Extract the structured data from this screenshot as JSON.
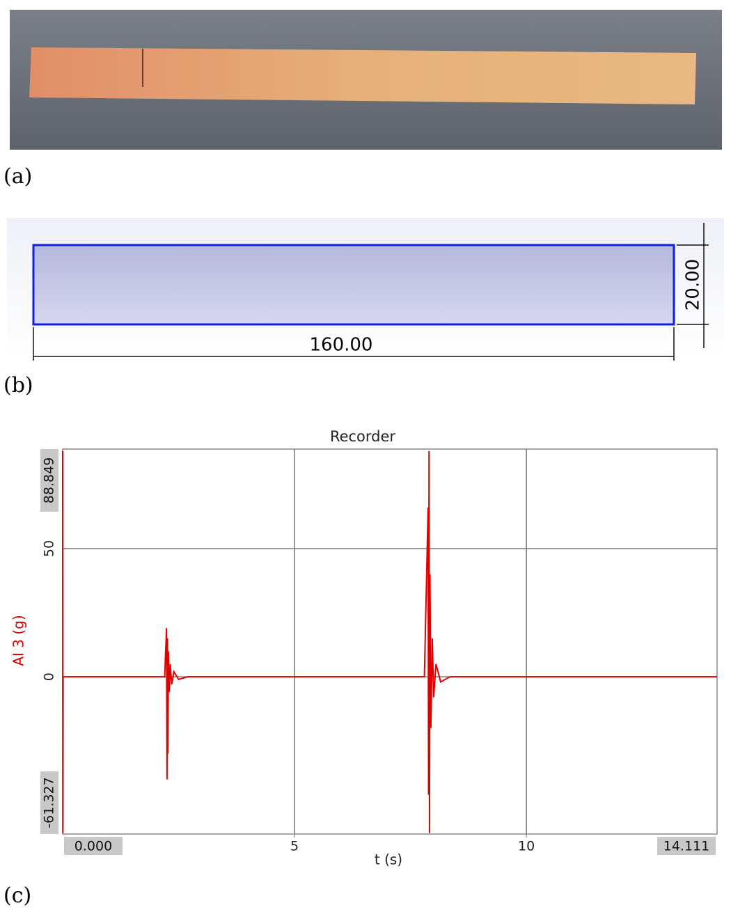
{
  "panels": [
    {
      "label": "(a)"
    },
    {
      "label": "(b)",
      "dimensions": {
        "length": "160.00",
        "width": "20.00"
      }
    },
    {
      "label": "(c)"
    }
  ],
  "chart_data": {
    "type": "line",
    "title": "Recorder",
    "x_label": "t (s)",
    "y_label": "AI 3 (g)",
    "x": [
      0,
      0.005,
      0.01,
      2.2,
      2.24,
      2.25,
      2.26,
      2.27,
      2.28,
      2.3,
      2.32,
      2.35,
      2.4,
      2.5,
      2.7,
      7.8,
      7.88,
      7.89,
      7.9,
      7.91,
      7.92,
      7.94,
      7.97,
      8.0,
      8.05,
      8.15,
      8.35,
      14.111
    ],
    "series": [
      {
        "name": "AI 3 (g)",
        "color": "#e00000",
        "values": [
          88,
          -61,
          0,
          0,
          19,
          -40,
          15,
          -30,
          10,
          -6,
          5,
          -3,
          2,
          -1,
          0,
          0,
          66,
          -46,
          88,
          -61,
          40,
          -20,
          15,
          -8,
          5,
          -2,
          0,
          0
        ]
      }
    ],
    "xlim": [
      0,
      14.111
    ],
    "ylim": [
      -61.327,
      88.849
    ],
    "xticks": [
      {
        "value": 0,
        "label": "0.000"
      },
      5,
      10,
      14.111
    ],
    "yticks": [
      -61.327,
      0,
      50,
      88.849
    ],
    "grid": true
  }
}
